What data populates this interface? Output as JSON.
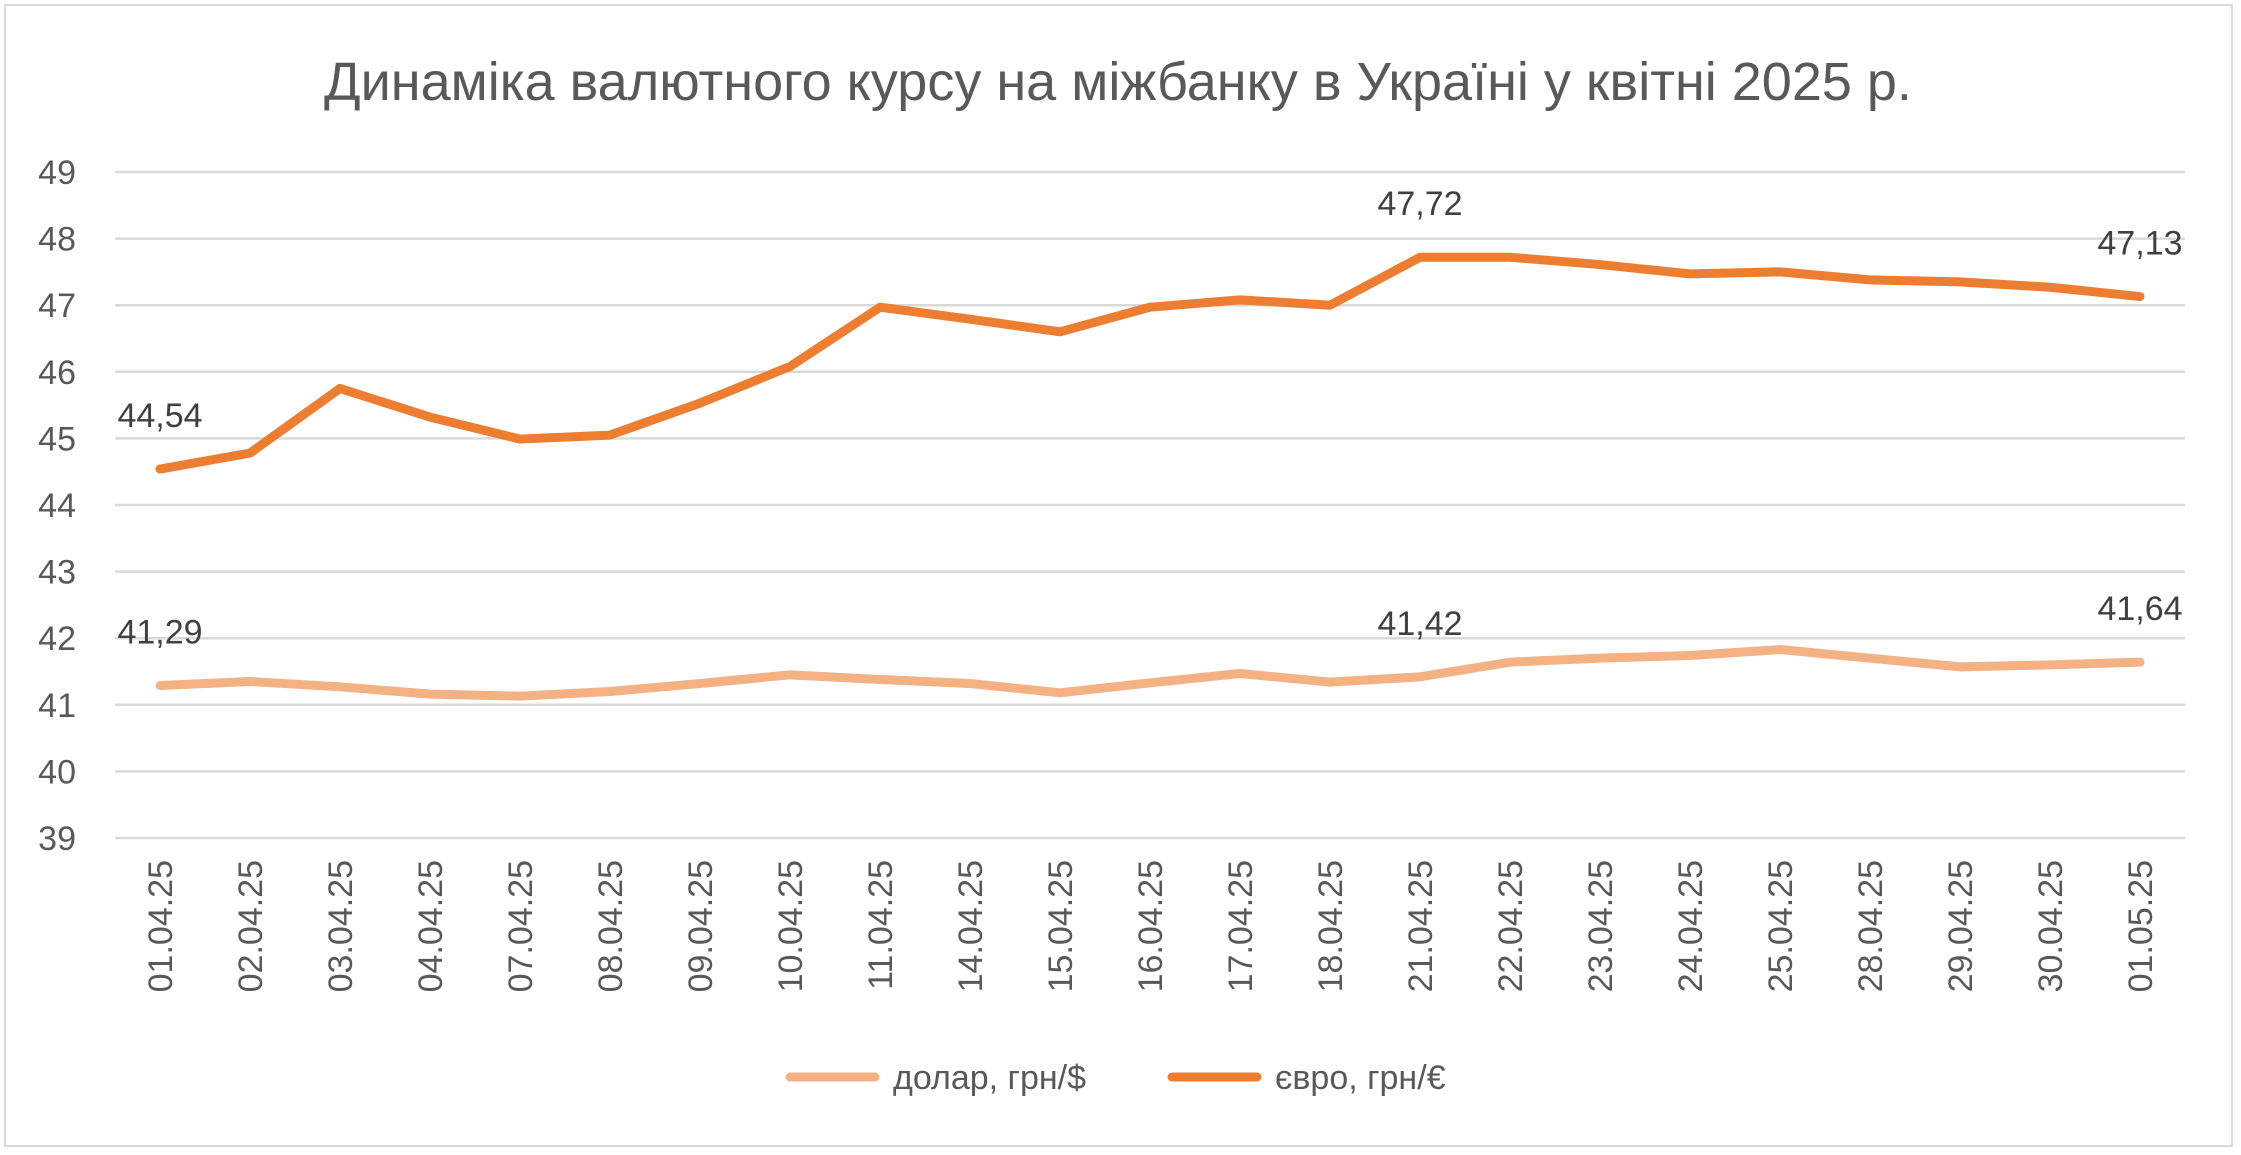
{
  "chart_data": {
    "type": "line",
    "title": "Динаміка валютного курсу на міжбанку в Україні у квітні 2025 р.",
    "xlabel": "",
    "ylabel": "",
    "ylim": [
      39,
      49
    ],
    "yticks": [
      39,
      40,
      41,
      42,
      43,
      44,
      45,
      46,
      47,
      48,
      49
    ],
    "grid": true,
    "legend_position": "bottom",
    "categories": [
      "01.04.25",
      "02.04.25",
      "03.04.25",
      "04.04.25",
      "07.04.25",
      "08.04.25",
      "09.04.25",
      "10.04.25",
      "11.04.25",
      "14.04.25",
      "15.04.25",
      "16.04.25",
      "17.04.25",
      "18.04.25",
      "21.04.25",
      "22.04.25",
      "23.04.25",
      "24.04.25",
      "25.04.25",
      "28.04.25",
      "29.04.25",
      "30.04.25",
      "01.05.25"
    ],
    "series": [
      {
        "name": "долар, грн/$",
        "color": "#f4b183",
        "values": [
          41.29,
          41.35,
          41.27,
          41.16,
          41.13,
          41.2,
          41.32,
          41.45,
          41.38,
          41.32,
          41.18,
          41.33,
          41.47,
          41.34,
          41.42,
          41.64,
          41.7,
          41.74,
          41.83,
          41.7,
          41.57,
          41.6,
          41.64
        ],
        "data_labels": [
          {
            "index": 0,
            "text": "41,29"
          },
          {
            "index": 14,
            "text": "41,42"
          },
          {
            "index": 22,
            "text": "41,64"
          }
        ]
      },
      {
        "name": "євро, грн/€",
        "color": "#ed7d31",
        "values": [
          44.54,
          44.78,
          45.75,
          45.32,
          44.99,
          45.05,
          45.53,
          46.08,
          46.97,
          46.79,
          46.6,
          46.97,
          47.08,
          47.0,
          47.72,
          47.72,
          47.61,
          47.47,
          47.5,
          47.38,
          47.35,
          47.27,
          47.13
        ],
        "data_labels": [
          {
            "index": 0,
            "text": "44,54"
          },
          {
            "index": 14,
            "text": "47,72"
          },
          {
            "index": 22,
            "text": "47,13"
          }
        ]
      }
    ]
  }
}
